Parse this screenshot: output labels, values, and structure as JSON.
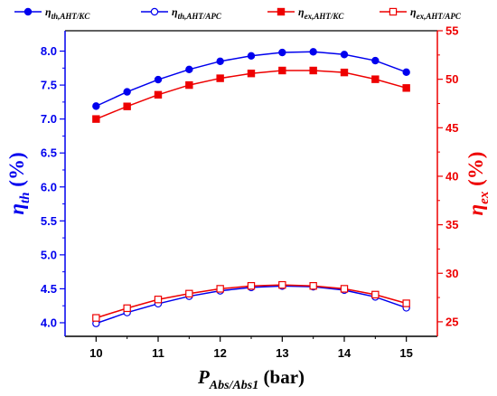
{
  "chart_data": {
    "type": "line",
    "x": [
      10,
      10.5,
      11,
      11.5,
      12,
      12.5,
      13,
      13.5,
      14,
      14.5,
      15
    ],
    "xlim": [
      9.5,
      15.5
    ],
    "x_ticks": [
      "10",
      "11",
      "12",
      "13",
      "14",
      "15"
    ],
    "xlabel": {
      "main": "P",
      "sub": "Abs/Abs1",
      "unit": " (bar)"
    },
    "y_left": {
      "label": {
        "main": "η",
        "sub": "th",
        "unit": " (%)"
      },
      "ylim": [
        3.8,
        8.3
      ],
      "ticks": [
        "4.0",
        "4.5",
        "5.0",
        "5.5",
        "6.0",
        "6.5",
        "7.0",
        "7.5",
        "8.0"
      ],
      "color": "#0000ee"
    },
    "y_right": {
      "label": {
        "main": "η",
        "sub": "ex",
        "unit": " (%)"
      },
      "ylim": [
        23.5,
        55
      ],
      "ticks": [
        "25",
        "30",
        "35",
        "40",
        "45",
        "50",
        "55"
      ],
      "color": "#ee0000"
    },
    "series": [
      {
        "name": "η",
        "name_sub": "th,AHT/KC",
        "axis": "left",
        "color": "#0000ee",
        "marker": "circle",
        "filled": true,
        "values": [
          7.19,
          7.4,
          7.58,
          7.73,
          7.85,
          7.93,
          7.98,
          7.99,
          7.95,
          7.86,
          7.69
        ]
      },
      {
        "name": "η",
        "name_sub": "th,AHT/APC",
        "axis": "left",
        "color": "#0000ee",
        "marker": "circle",
        "filled": false,
        "values": [
          3.99,
          4.15,
          4.28,
          4.39,
          4.47,
          4.52,
          4.54,
          4.53,
          4.48,
          4.38,
          4.22
        ]
      },
      {
        "name": "η",
        "name_sub": "ex,AHT/KC",
        "axis": "right",
        "color": "#ee0000",
        "marker": "square",
        "filled": true,
        "values": [
          45.9,
          47.2,
          48.4,
          49.4,
          50.1,
          50.6,
          50.9,
          50.9,
          50.7,
          50.0,
          49.1
        ]
      },
      {
        "name": "η",
        "name_sub": "ex,AHT/APC",
        "axis": "right",
        "color": "#ee0000",
        "marker": "square",
        "filled": false,
        "values": [
          25.4,
          26.4,
          27.3,
          27.9,
          28.4,
          28.7,
          28.8,
          28.7,
          28.4,
          27.8,
          26.9
        ]
      }
    ],
    "legend_position": "top"
  }
}
